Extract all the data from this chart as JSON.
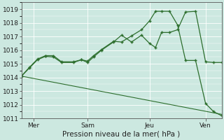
{
  "xlabel": "Pression niveau de la mer( hPa )",
  "background_color": "#cce8e0",
  "grid_color": "#ffffff",
  "line_color": "#2d6e2d",
  "xlim": [
    0,
    100
  ],
  "ylim": [
    1011,
    1019.5
  ],
  "yticks": [
    1011,
    1012,
    1013,
    1014,
    1015,
    1016,
    1017,
    1018,
    1019
  ],
  "xtick_positions": [
    6,
    33,
    64,
    92
  ],
  "xtick_labels": [
    "Mer",
    "Sam",
    "Jeu",
    "Ven"
  ],
  "series1_x": [
    0,
    4,
    8,
    12,
    16,
    20,
    26,
    30,
    33,
    36,
    40,
    46,
    50,
    55,
    60,
    64,
    67,
    70,
    74,
    78,
    82,
    87,
    92,
    96,
    100
  ],
  "series1_y": [
    1014.1,
    1014.7,
    1015.3,
    1015.55,
    1015.5,
    1015.1,
    1015.1,
    1015.3,
    1015.1,
    1015.5,
    1016.0,
    1016.6,
    1017.1,
    1016.6,
    1017.1,
    1016.5,
    1016.2,
    1017.3,
    1017.3,
    1017.5,
    1018.8,
    1018.85,
    1015.15,
    1015.1,
    1015.1
  ],
  "series2_x": [
    0,
    4,
    8,
    12,
    16,
    20,
    26,
    30,
    33,
    36,
    40,
    46,
    50,
    55,
    60,
    64,
    67,
    70,
    74,
    78,
    82,
    87,
    92,
    96,
    100
  ],
  "series2_y": [
    1014.1,
    1014.75,
    1015.35,
    1015.6,
    1015.6,
    1015.15,
    1015.15,
    1015.3,
    1015.2,
    1015.6,
    1016.05,
    1016.65,
    1016.6,
    1017.05,
    1017.5,
    1018.15,
    1018.85,
    1018.85,
    1018.85,
    1017.85,
    1015.25,
    1015.25,
    1012.1,
    1011.5,
    1011.2
  ],
  "series3_x": [
    0,
    100
  ],
  "series3_y": [
    1014.1,
    1011.3
  ]
}
